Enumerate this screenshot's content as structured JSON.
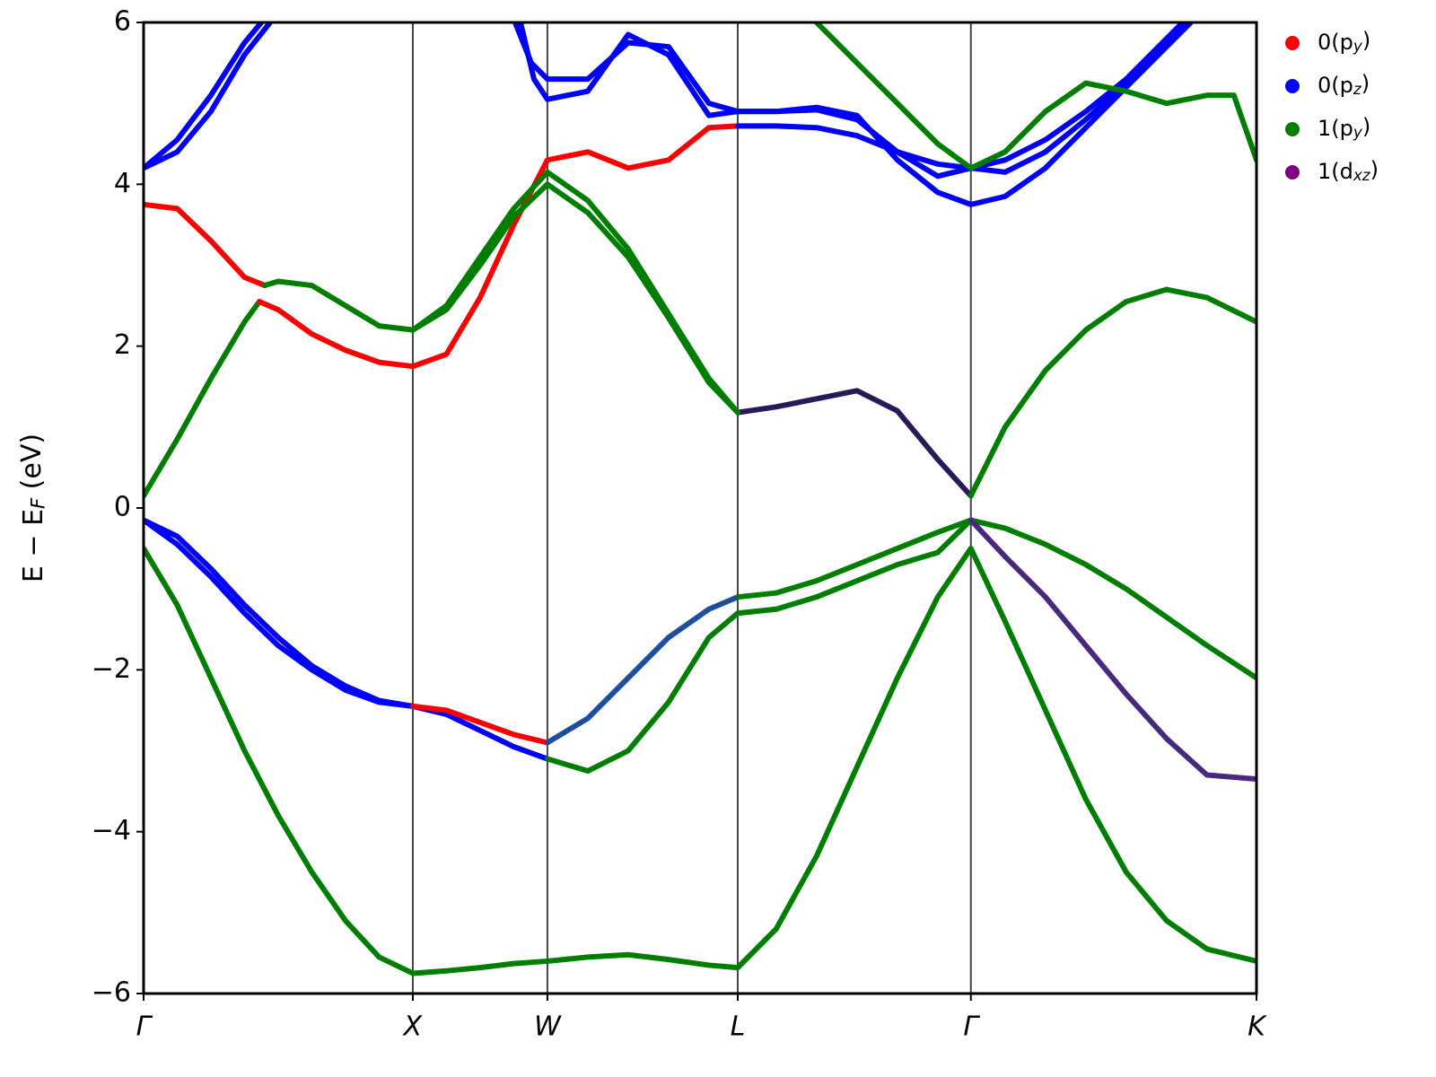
{
  "chart_data": {
    "type": "line",
    "ylabel": "E − E_F (eV)",
    "xlim": [
      0,
      4.134
    ],
    "ylim": [
      -6,
      6
    ],
    "xticks": [
      {
        "value": 0,
        "label": "Γ"
      },
      {
        "value": 1,
        "label": "X"
      },
      {
        "value": 1.5,
        "label": "W"
      },
      {
        "value": 2.207,
        "label": "L"
      },
      {
        "value": 3.073,
        "label": "Γ"
      },
      {
        "value": 4.134,
        "label": "K"
      }
    ],
    "yticks": [
      {
        "value": -6,
        "label": "−6"
      },
      {
        "value": -4,
        "label": "−4"
      },
      {
        "value": -2,
        "label": "−2"
      },
      0,
      2,
      4,
      6
    ],
    "xgrid": true,
    "legend_position": "upper right outside",
    "series": [
      {
        "name": "0(p_y)",
        "color": "#ff0000"
      },
      {
        "name": "0(p_z)",
        "color": "#0000ff"
      },
      {
        "name": "1(p_y)",
        "color": "#008000"
      },
      {
        "name": "1(d_xz)",
        "color": "#800080"
      }
    ],
    "bands": [
      {
        "color": "#008000",
        "x": [
          0,
          0.125,
          0.25,
          0.375,
          0.5,
          0.625,
          0.75,
          0.875,
          1,
          1.125,
          1.25,
          1.375,
          1.5,
          1.65,
          1.8,
          1.95,
          2.1,
          2.207,
          2.35,
          2.5,
          2.65,
          2.8,
          2.95,
          3.073,
          3.2,
          3.35,
          3.5,
          3.65,
          3.8,
          3.95,
          4.134
        ],
        "values": [
          -0.5,
          -1.2,
          -2.1,
          -3.0,
          -3.8,
          -4.5,
          -5.1,
          -5.55,
          -5.75,
          -5.72,
          -5.68,
          -5.63,
          -5.6,
          -5.55,
          -5.52,
          -5.58,
          -5.65,
          -5.68,
          -5.2,
          -4.3,
          -3.2,
          -2.1,
          -1.1,
          -0.5,
          -1.4,
          -2.5,
          -3.6,
          -4.5,
          -5.1,
          -5.45,
          -5.6
        ]
      },
      {
        "color": "#0000ff",
        "x": [
          0,
          0.125,
          0.25,
          0.375,
          0.5,
          0.625,
          0.75,
          0.875,
          1,
          1.125,
          1.25,
          1.375,
          1.5
        ],
        "values": [
          -0.15,
          -0.45,
          -0.85,
          -1.3,
          -1.7,
          -2.0,
          -2.25,
          -2.4,
          -2.45,
          -2.55,
          -2.75,
          -2.95,
          -3.1
        ]
      },
      {
        "color": "#008000",
        "x": [
          1.5,
          1.65,
          1.8,
          1.95,
          2.1,
          2.207,
          2.35,
          2.5,
          2.65,
          2.8,
          2.95,
          3.073,
          3.2,
          3.35,
          3.5,
          3.65,
          3.8,
          3.95,
          4.134
        ],
        "values": [
          -3.1,
          -3.25,
          -3.0,
          -2.4,
          -1.6,
          -1.3,
          -1.25,
          -1.1,
          -0.9,
          -0.7,
          -0.55,
          -0.15,
          -0.25,
          -0.45,
          -0.7,
          -1.0,
          -1.35,
          -1.7,
          -2.1
        ]
      },
      {
        "color": "#0000ff",
        "x": [
          0,
          0.125,
          0.25,
          0.375,
          0.5,
          0.625,
          0.75,
          0.875,
          1
        ],
        "values": [
          -0.15,
          -0.35,
          -0.75,
          -1.2,
          -1.6,
          -1.95,
          -2.2,
          -2.38,
          -2.45
        ]
      },
      {
        "color": "#ff0000",
        "x": [
          1,
          1.125,
          1.25,
          1.375,
          1.5
        ],
        "values": [
          -2.45,
          -2.5,
          -2.65,
          -2.8,
          -2.9
        ]
      },
      {
        "color": "#1f4fa0",
        "x": [
          1.5,
          1.65,
          1.8,
          1.95,
          2.1,
          2.207
        ],
        "values": [
          -2.9,
          -2.6,
          -2.1,
          -1.6,
          -1.25,
          -1.1
        ]
      },
      {
        "color": "#008000",
        "x": [
          2.207,
          2.35,
          2.5,
          2.65,
          2.8,
          2.95,
          3.073
        ],
        "values": [
          -1.1,
          -1.05,
          -0.9,
          -0.7,
          -0.5,
          -0.3,
          -0.15
        ]
      },
      {
        "color": "#4a2a80",
        "x": [
          3.073,
          3.2,
          3.35,
          3.5,
          3.65,
          3.8,
          3.95,
          4.134
        ],
        "values": [
          -0.15,
          -0.6,
          -1.1,
          -1.7,
          -2.3,
          -2.85,
          -3.3,
          -3.35
        ]
      },
      {
        "color": "#008000",
        "x": [
          0,
          0.125,
          0.25,
          0.375,
          0.43
        ],
        "values": [
          0.15,
          0.85,
          1.6,
          2.3,
          2.55
        ]
      },
      {
        "color": "#ff0000",
        "x": [
          0.43,
          0.5,
          0.625,
          0.75,
          0.875,
          1,
          1.125,
          1.25,
          1.375,
          1.5,
          1.65,
          1.8,
          1.95,
          2.1,
          2.207
        ],
        "values": [
          2.55,
          2.45,
          2.15,
          1.95,
          1.8,
          1.75,
          1.9,
          2.6,
          3.5,
          4.3,
          4.4,
          4.2,
          4.3,
          4.7,
          4.72
        ]
      },
      {
        "color": "#0000ff",
        "x": [
          2.207,
          2.35,
          2.5,
          2.65,
          2.8,
          2.95,
          3.073,
          3.2,
          3.35,
          3.5,
          3.65,
          3.8,
          3.95
        ],
        "values": [
          4.72,
          4.72,
          4.7,
          4.6,
          4.4,
          4.25,
          4.2,
          4.3,
          4.55,
          4.9,
          5.3,
          5.8,
          6.3
        ]
      },
      {
        "color": "#ff0000",
        "x": [
          0,
          0.125,
          0.25,
          0.375,
          0.45
        ],
        "values": [
          3.75,
          3.7,
          3.3,
          2.85,
          2.75
        ]
      },
      {
        "color": "#008000",
        "x": [
          0.45,
          0.5,
          0.625,
          0.75,
          0.875,
          1,
          1.125,
          1.25,
          1.375,
          1.5,
          1.65,
          1.8,
          1.95,
          2.1,
          2.207
        ],
        "values": [
          2.75,
          2.8,
          2.75,
          2.5,
          2.25,
          2.2,
          2.5,
          3.1,
          3.7,
          4.15,
          3.8,
          3.2,
          2.4,
          1.6,
          1.18
        ]
      },
      {
        "color": "#2a1a5a",
        "x": [
          2.207,
          2.35,
          2.5,
          2.65,
          2.8,
          2.95,
          3.073
        ],
        "values": [
          1.18,
          1.25,
          1.35,
          1.45,
          1.2,
          0.6,
          0.15
        ]
      },
      {
        "color": "#008000",
        "x": [
          3.073,
          3.2,
          3.35,
          3.5,
          3.65,
          3.8,
          3.95,
          4.134
        ],
        "values": [
          0.15,
          1.0,
          1.7,
          2.2,
          2.55,
          2.7,
          2.6,
          2.3
        ]
      },
      {
        "color": "#008000",
        "x": [
          1,
          1.125,
          1.25,
          1.375,
          1.5,
          1.65,
          1.8,
          1.95,
          2.1,
          2.207
        ],
        "values": [
          2.2,
          2.45,
          3.0,
          3.6,
          4.0,
          3.65,
          3.1,
          2.35,
          1.55,
          1.18
        ]
      },
      {
        "color": "#0000ff",
        "x": [
          1.38,
          1.44,
          1.5,
          1.65,
          1.8,
          1.95,
          2.1,
          2.207,
          2.35,
          2.5,
          2.65,
          2.8,
          2.95,
          3.073,
          3.2,
          3.35,
          3.5,
          3.65,
          3.8,
          3.95
        ],
        "values": [
          6.0,
          5.5,
          5.3,
          5.3,
          5.75,
          5.7,
          5.0,
          4.9,
          4.9,
          4.92,
          4.8,
          4.4,
          4.1,
          4.2,
          4.15,
          4.4,
          4.8,
          5.25,
          5.75,
          6.2
        ]
      },
      {
        "color": "#0000ff",
        "x": [
          1.4,
          1.45,
          1.5,
          1.65,
          1.8,
          1.95,
          2.1,
          2.207,
          2.35,
          2.5,
          2.65,
          2.8,
          2.95,
          3.073,
          3.2,
          3.35,
          3.5,
          3.65,
          3.8,
          3.95
        ],
        "values": [
          6.0,
          5.3,
          5.05,
          5.15,
          5.85,
          5.6,
          4.85,
          4.9,
          4.9,
          4.95,
          4.85,
          4.3,
          3.9,
          3.75,
          3.85,
          4.2,
          4.7,
          5.2,
          5.7,
          6.2
        ]
      },
      {
        "color": "#008000",
        "x": [
          2.5,
          2.65,
          2.8,
          2.95,
          3.073,
          3.2,
          3.35,
          3.5,
          3.65,
          3.8,
          3.95,
          4.05,
          4.134
        ],
        "values": [
          6.0,
          5.5,
          5.0,
          4.5,
          4.2,
          4.4,
          4.9,
          5.25,
          5.15,
          5.0,
          5.1,
          5.1,
          4.3
        ]
      },
      {
        "color": "#0000ff",
        "x": [
          0,
          0.125,
          0.25,
          0.375,
          0.47
        ],
        "values": [
          4.2,
          4.4,
          4.9,
          5.6,
          6.0
        ]
      },
      {
        "color": "#0000ff",
        "x": [
          0,
          0.125,
          0.25,
          0.375,
          0.45
        ],
        "values": [
          4.2,
          4.55,
          5.1,
          5.75,
          6.05
        ]
      }
    ]
  }
}
